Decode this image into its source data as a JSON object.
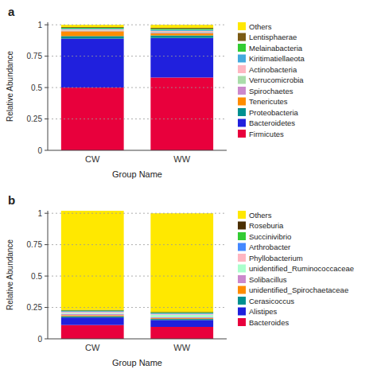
{
  "chart_data": [
    {
      "type": "bar",
      "stacked": true,
      "title": "a",
      "xlabel": "Group Name",
      "ylabel": "Relative Abundance",
      "categories": [
        "CW",
        "WW"
      ],
      "series": [
        {
          "name": "Firmicutes",
          "color": "#E8003C",
          "values": [
            0.5,
            0.58
          ]
        },
        {
          "name": "Bacteroidetes",
          "color": "#2020DD",
          "values": [
            0.39,
            0.315
          ]
        },
        {
          "name": "Proteobacteria",
          "color": "#009090",
          "values": [
            0.02,
            0.02
          ]
        },
        {
          "name": "Tenericutes",
          "color": "#FF8C00",
          "values": [
            0.038,
            0.016
          ]
        },
        {
          "name": "Spirochaetes",
          "color": "#CC88CC",
          "values": [
            0.005,
            0.006
          ]
        },
        {
          "name": "Verrucomicrobia",
          "color": "#AADDAA",
          "values": [
            0.005,
            0.006
          ]
        },
        {
          "name": "Actinobacteria",
          "color": "#FFB6C1",
          "values": [
            0.006,
            0.008
          ]
        },
        {
          "name": "Kiritimatiellaeota",
          "color": "#44AADD",
          "values": [
            0.006,
            0.009
          ]
        },
        {
          "name": "Melainabacteria",
          "color": "#33CC33",
          "values": [
            0.006,
            0.008
          ]
        },
        {
          "name": "Lentisphaerae",
          "color": "#7B5B14",
          "values": [
            0.006,
            0.008
          ]
        },
        {
          "name": "Others",
          "color": "#FFE800",
          "values": [
            0.018,
            0.024
          ]
        }
      ],
      "ylim": [
        0,
        1.02
      ],
      "yticks": [
        0,
        0.25,
        0.5,
        0.75,
        1
      ],
      "grid": true,
      "legend": "right"
    },
    {
      "type": "bar",
      "stacked": true,
      "title": "b",
      "xlabel": "Group Name",
      "ylabel": "Relative Abundance",
      "categories": [
        "CW",
        "WW"
      ],
      "series": [
        {
          "name": "Bacteroides",
          "color": "#E8003C",
          "values": [
            0.11,
            0.095
          ]
        },
        {
          "name": "Alistipes",
          "color": "#2020DD",
          "values": [
            0.06,
            0.055
          ]
        },
        {
          "name": "Cerasicoccus",
          "color": "#009090",
          "values": [
            0.01,
            0.008
          ]
        },
        {
          "name": "unidentified_Spirochaetaceae",
          "color": "#FF8C00",
          "values": [
            0.008,
            0.006
          ]
        },
        {
          "name": "Solibacillus",
          "color": "#CC88CC",
          "values": [
            0.01,
            0.008
          ]
        },
        {
          "name": "unidentified_Ruminococcaceae",
          "color": "#AAFFCC",
          "values": [
            0.008,
            0.02
          ]
        },
        {
          "name": "Phyllobacterium",
          "color": "#FFB6C1",
          "values": [
            0.008,
            0.006
          ]
        },
        {
          "name": "Arthrobacter",
          "color": "#4488FF",
          "values": [
            0.006,
            0.006
          ]
        },
        {
          "name": "Succinivibrio",
          "color": "#33CC33",
          "values": [
            0.006,
            0.006
          ]
        },
        {
          "name": "Roseburia",
          "color": "#4B2F00",
          "values": [
            0.004,
            0.004
          ]
        },
        {
          "name": "Others",
          "color": "#FFE800",
          "values": [
            0.79,
            0.786
          ]
        }
      ],
      "ylim": [
        0,
        1.02
      ],
      "yticks": [
        0,
        0.25,
        0.5,
        0.75,
        1
      ],
      "grid": true,
      "legend": "right"
    }
  ]
}
